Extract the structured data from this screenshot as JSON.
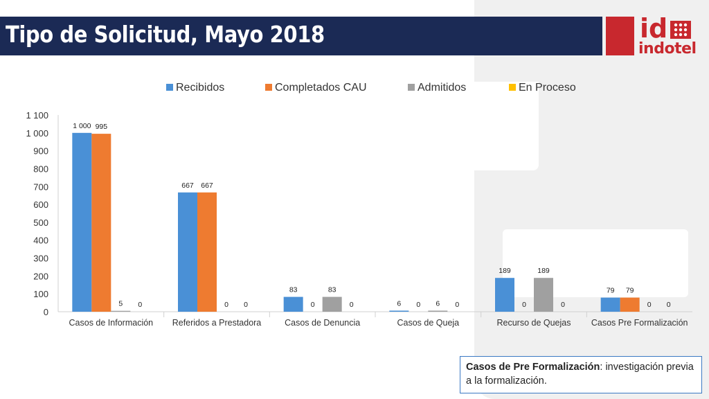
{
  "header": {
    "title": "Tipo de Solicitud, Mayo 2018"
  },
  "logo": {
    "text": "indotel",
    "mark_text": "id",
    "accent": "#c8282e"
  },
  "note": {
    "term": "Casos de Pre Formalización",
    "text": ": investigación previa a la formalización."
  },
  "chart_data": {
    "type": "bar",
    "categories": [
      "Casos de Información",
      "Referidos a Prestadora",
      "Casos de Denuncia",
      "Casos de Queja",
      "Recurso de Quejas",
      "Casos Pre Formalización"
    ],
    "series": [
      {
        "name": "Recibidos",
        "color": "#4a90d6",
        "values": [
          1000,
          667,
          83,
          6,
          189,
          79
        ]
      },
      {
        "name": "Completados CAU",
        "color": "#ee7b30",
        "values": [
          995,
          667,
          0,
          0,
          0,
          79
        ]
      },
      {
        "name": "Admitidos",
        "color": "#a0a0a0",
        "values": [
          5,
          0,
          83,
          6,
          189,
          0
        ]
      },
      {
        "name": "En Proceso",
        "color": "#ffc000",
        "values": [
          0,
          0,
          0,
          0,
          0,
          0
        ]
      }
    ],
    "data_labels": [
      [
        "1 000",
        "667",
        "83",
        "6",
        "189",
        "79"
      ],
      [
        "995",
        "667",
        "0",
        "0",
        "0",
        "79"
      ],
      [
        "5",
        "0",
        "83",
        "6",
        "189",
        "0"
      ],
      [
        "0",
        "0",
        "0",
        "0",
        "0",
        "0"
      ]
    ],
    "y_ticks": [
      "0",
      "100",
      "200",
      "300",
      "400",
      "500",
      "600",
      "700",
      "800",
      "900",
      "1 000",
      "1 100"
    ],
    "ylim": [
      0,
      1100
    ],
    "legend_position": "top",
    "grid": false
  }
}
